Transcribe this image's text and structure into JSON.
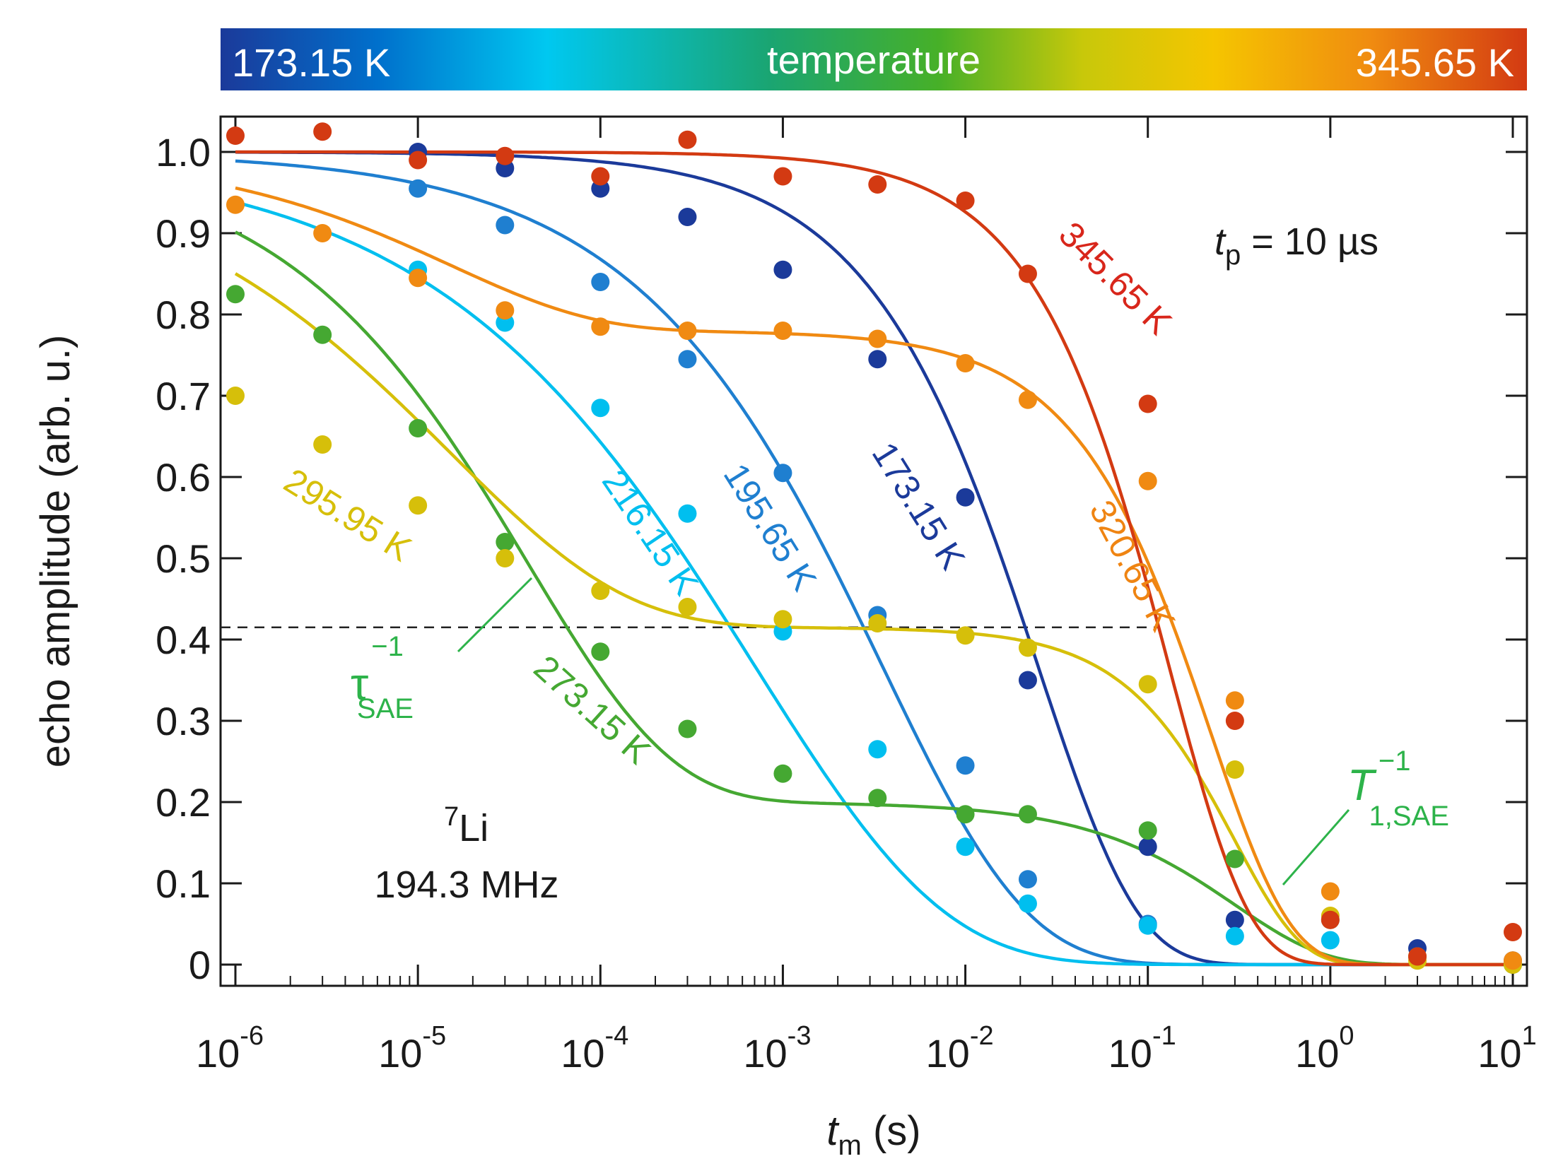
{
  "chart_data": {
    "type": "scatter",
    "xscale": "log",
    "xlim_exponent": [
      -6,
      1
    ],
    "ylim": [
      0,
      1.0
    ],
    "xlabel": {
      "main": "t",
      "sub": "m",
      "unit": " (s)"
    },
    "ylabel": "echo amplitude (arb. u.)",
    "x_tick_labels": [
      {
        "base": "10",
        "exp": "-6"
      },
      {
        "base": "10",
        "exp": "-5"
      },
      {
        "base": "10",
        "exp": "-4"
      },
      {
        "base": "10",
        "exp": "-3"
      },
      {
        "base": "10",
        "exp": "-2"
      },
      {
        "base": "10",
        "exp": "-1"
      },
      {
        "base": "10",
        "exp": "0"
      },
      {
        "base": "10",
        "exp": "1"
      }
    ],
    "y_ticks": [
      0,
      0.1,
      0.2,
      0.3,
      0.4,
      0.5,
      0.6,
      0.7,
      0.8,
      0.9,
      1.0
    ],
    "y_tick_labels": [
      "0",
      "0.1",
      "0.2",
      "0.3",
      "0.4",
      "0.5",
      "0.6",
      "0.7",
      "0.8",
      "0.9",
      "1.0"
    ],
    "colorbar": {
      "left_label": "173.15 K",
      "center_label": "temperature",
      "right_label": "345.65 K",
      "stops": [
        "#1b3a9a",
        "#0070cc",
        "#00c8f0",
        "#1aa572",
        "#47b028",
        "#c8c80a",
        "#f5c500",
        "#f08c10",
        "#d33a12"
      ]
    },
    "reference_line_y": 0.415,
    "x_points": [
      1e-06,
      3e-06,
      1e-05,
      3e-05,
      0.0001,
      0.0003,
      0.001,
      0.0033,
      0.01,
      0.022,
      0.1,
      0.3,
      1,
      3,
      10
    ],
    "series": [
      {
        "name": "173.15 K",
        "label": "173.15 K",
        "color": "#1b3a9a",
        "values": [
          null,
          null,
          1.0,
          0.98,
          0.955,
          0.92,
          0.855,
          0.745,
          0.575,
          0.35,
          0.145,
          0.055,
          null,
          0.02,
          0.005
        ],
        "fit": {
          "a1": 1.0,
          "b1": 0.0,
          "tau1": 0.025,
          "beta1": 0.8,
          "a2": 0.035,
          "tau2": 0.6,
          "beta2": 1.2,
          "xmin": 1e-06
        }
      },
      {
        "name": "195.65 K",
        "label": "195.65 K",
        "color": "#1f7fd0",
        "values": [
          null,
          null,
          0.955,
          0.91,
          0.84,
          0.745,
          0.605,
          0.43,
          0.245,
          0.105,
          0.05,
          null,
          null,
          null,
          null
        ],
        "fit": {
          "a1": 1.0,
          "b1": 0.0,
          "tau1": 0.0035,
          "beta1": 0.55,
          "a2": 0.035,
          "tau2": 0.8,
          "beta2": 1.3,
          "xmin": 1e-06
        }
      },
      {
        "name": "216.15 K",
        "label": "216.15 K",
        "color": "#00bfef",
        "values": [
          null,
          null,
          0.855,
          0.79,
          0.685,
          0.555,
          0.41,
          0.265,
          0.145,
          0.075,
          0.048,
          0.035,
          0.03,
          null,
          null
        ],
        "fit": {
          "a1": 1.0,
          "b1": 0.0,
          "tau1": 0.0007,
          "beta1": 0.42,
          "a2": 0.035,
          "tau2": 0.8,
          "beta2": 1.3,
          "xmin": 1e-06
        }
      },
      {
        "name": "273.15 K",
        "label": "273.15 K",
        "color": "#45a832",
        "values": [
          0.825,
          0.775,
          0.66,
          0.52,
          0.385,
          0.29,
          0.235,
          0.205,
          0.185,
          0.185,
          0.165,
          0.13,
          0.055,
          0.01,
          0.0
        ],
        "fit": {
          "a1": 1.0,
          "b1": 0.2,
          "tau1": 4e-05,
          "beta1": 0.55,
          "a2": 1.0,
          "tau2": 0.3,
          "beta2": 0.9,
          "xmin": 1e-06
        }
      },
      {
        "name": "295.95 K",
        "label": "295.95 K",
        "color": "#d6bf0a",
        "values": [
          0.7,
          0.64,
          0.565,
          0.5,
          0.46,
          0.44,
          0.425,
          0.42,
          0.405,
          0.39,
          0.345,
          0.24,
          0.06,
          0.005,
          0.0
        ],
        "fit": {
          "a1": 1.0,
          "b1": 0.415,
          "tau1": 1.5e-05,
          "beta1": 0.45,
          "a2": 1.0,
          "tau2": 0.3,
          "beta2": 1.2,
          "xmin": 1e-06
        }
      },
      {
        "name": "320.65 K",
        "label": "320.65 K",
        "color": "#f08a12",
        "values": [
          0.935,
          0.9,
          0.845,
          0.805,
          0.785,
          0.78,
          0.78,
          0.77,
          0.74,
          0.695,
          0.595,
          0.325,
          0.09,
          0.01,
          0.005
        ],
        "fit": {
          "a1": 1.0,
          "b1": 0.78,
          "tau1": 1.5e-05,
          "beta1": 0.55,
          "a2": 1.0,
          "tau2": 0.22,
          "beta2": 1.0,
          "xmin": 1e-06
        }
      },
      {
        "name": "345.65 K",
        "label": "345.65 K",
        "color": "#d33a12",
        "values": [
          1.02,
          1.025,
          0.99,
          0.995,
          0.97,
          1.015,
          0.97,
          0.96,
          0.94,
          0.85,
          0.69,
          0.3,
          0.055,
          0.01,
          0.04
        ],
        "fit": {
          "a1": 1.0,
          "b1": 0.0,
          "tau1": 0.15,
          "beta1": 1.0,
          "a2": 1.0,
          "tau2": 1.0,
          "beta2": 1.0,
          "xmin": 1e-06
        }
      }
    ],
    "annotations": {
      "tp_label": {
        "main": "t",
        "sub": "p",
        "rest": " = 10 µs"
      },
      "nucleus": {
        "sup": "7",
        "main": "Li"
      },
      "frequency": "194.3 MHz",
      "tau_label": {
        "main": "τ",
        "sup": "−1",
        "sub": "SAE"
      },
      "T1_label": {
        "main": "T",
        "sup": "−1",
        "sub": "1,SAE"
      }
    }
  }
}
